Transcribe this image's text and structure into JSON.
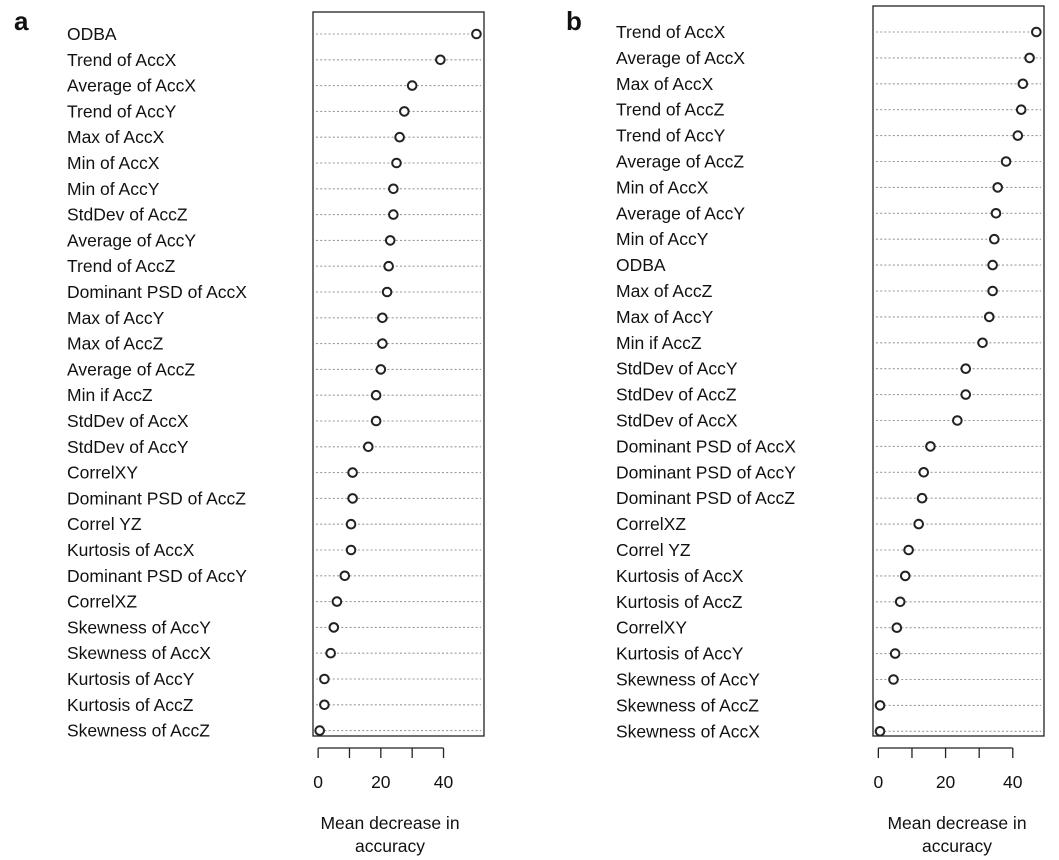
{
  "panels": [
    {
      "letter": "a",
      "chart_data": {
        "type": "scatter",
        "subtype": "dotplot",
        "xlabel_lines": [
          "Mean decrease in",
          "accuracy"
        ],
        "xticks": [
          0,
          20,
          40
        ],
        "xlim": [
          -1,
          51
        ],
        "grid": "dotted horizontal lines",
        "categories": [
          "ODBA",
          "Trend of AccX",
          "Average of AccX",
          "Trend of AccY",
          "Max of AccX",
          "Min of AccX",
          "Min of AccY",
          "StdDev of AccZ",
          "Average of AccY",
          "Trend of AccZ",
          "Dominant PSD of AccX",
          "Max of AccY",
          "Max of AccZ",
          "Average of AccZ",
          "Min if AccZ",
          "StdDev of AccX",
          "StdDev of AccY",
          "CorrelXY",
          "Dominant PSD of AccZ",
          "Correl YZ",
          "Kurtosis of AccX",
          "Dominant PSD of AccY",
          "CorrelXZ",
          "Skewness of AccY",
          "Skewness of AccX",
          "Kurtosis of AccY",
          "Kurtosis of AccZ",
          "Skewness of AccZ"
        ],
        "values": [
          50.5,
          39,
          30,
          27.5,
          26,
          25,
          24,
          24,
          23,
          22.5,
          22,
          20.5,
          20.5,
          20,
          18.5,
          18.5,
          16,
          11,
          11,
          10.5,
          10.5,
          8.5,
          6,
          5,
          4,
          2,
          2,
          0.5
        ]
      }
    },
    {
      "letter": "b",
      "chart_data": {
        "type": "scatter",
        "subtype": "dotplot",
        "xlabel_lines": [
          "Mean decrease in",
          "accuracy"
        ],
        "xticks": [
          0,
          20,
          40
        ],
        "xlim": [
          -1,
          47.5
        ],
        "grid": "dotted horizontal lines",
        "categories": [
          "Trend of AccX",
          "Average of AccX",
          "Max of AccX",
          "Trend of AccZ",
          "Trend of AccY",
          "Average of AccZ",
          "Min of AccX",
          "Average of AccY",
          "Min of AccY",
          "ODBA",
          "Max of AccZ",
          "Max of AccY",
          "Min if AccZ",
          "StdDev of AccY",
          "StdDev of AccZ",
          "StdDev of AccX",
          "Dominant PSD of AccX",
          "Dominant PSD of AccY",
          "Dominant PSD of AccZ",
          "CorrelXZ",
          "Correl YZ",
          "Kurtosis of AccX",
          "Kurtosis of AccZ",
          "CorrelXY",
          "Kurtosis of AccY",
          "Skewness of AccY",
          "Skewness of AccZ",
          "Skewness of AccX"
        ],
        "values": [
          47,
          45,
          43,
          42.5,
          41.5,
          38,
          35.5,
          35,
          34.5,
          34,
          34,
          33,
          31,
          26,
          26,
          23.5,
          15.5,
          13.5,
          13,
          12,
          9,
          8,
          6.5,
          5.5,
          5,
          4.5,
          0.5,
          0.5
        ]
      }
    }
  ]
}
